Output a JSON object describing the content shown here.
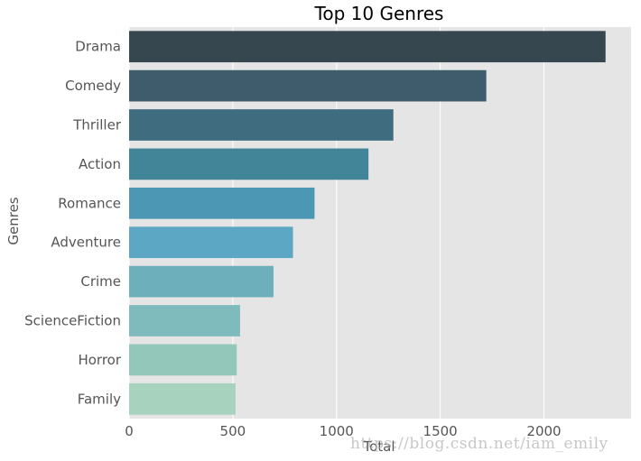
{
  "chart_data": {
    "type": "bar",
    "orientation": "horizontal",
    "title": "Top 10 Genres",
    "xlabel": "Total",
    "ylabel": "Genres",
    "categories": [
      "Drama",
      "Comedy",
      "Thriller",
      "Action",
      "Romance",
      "Adventure",
      "Crime",
      "ScienceFiction",
      "Horror",
      "Family"
    ],
    "values": [
      2297,
      1722,
      1274,
      1154,
      894,
      790,
      696,
      535,
      519,
      513
    ],
    "xlim": [
      0,
      2420
    ],
    "xticks": [
      0,
      500,
      1000,
      1500,
      2000
    ],
    "grid": true,
    "colors": [
      "#37474f",
      "#3e5c6b",
      "#3f6d7f",
      "#428599",
      "#4c97b4",
      "#5ba7c4",
      "#6dafbb",
      "#7fbabc",
      "#93c7b9",
      "#a7d2bd"
    ],
    "background": "#e5e5e5"
  },
  "watermark": "https://blog.csdn.net/iam_emily"
}
